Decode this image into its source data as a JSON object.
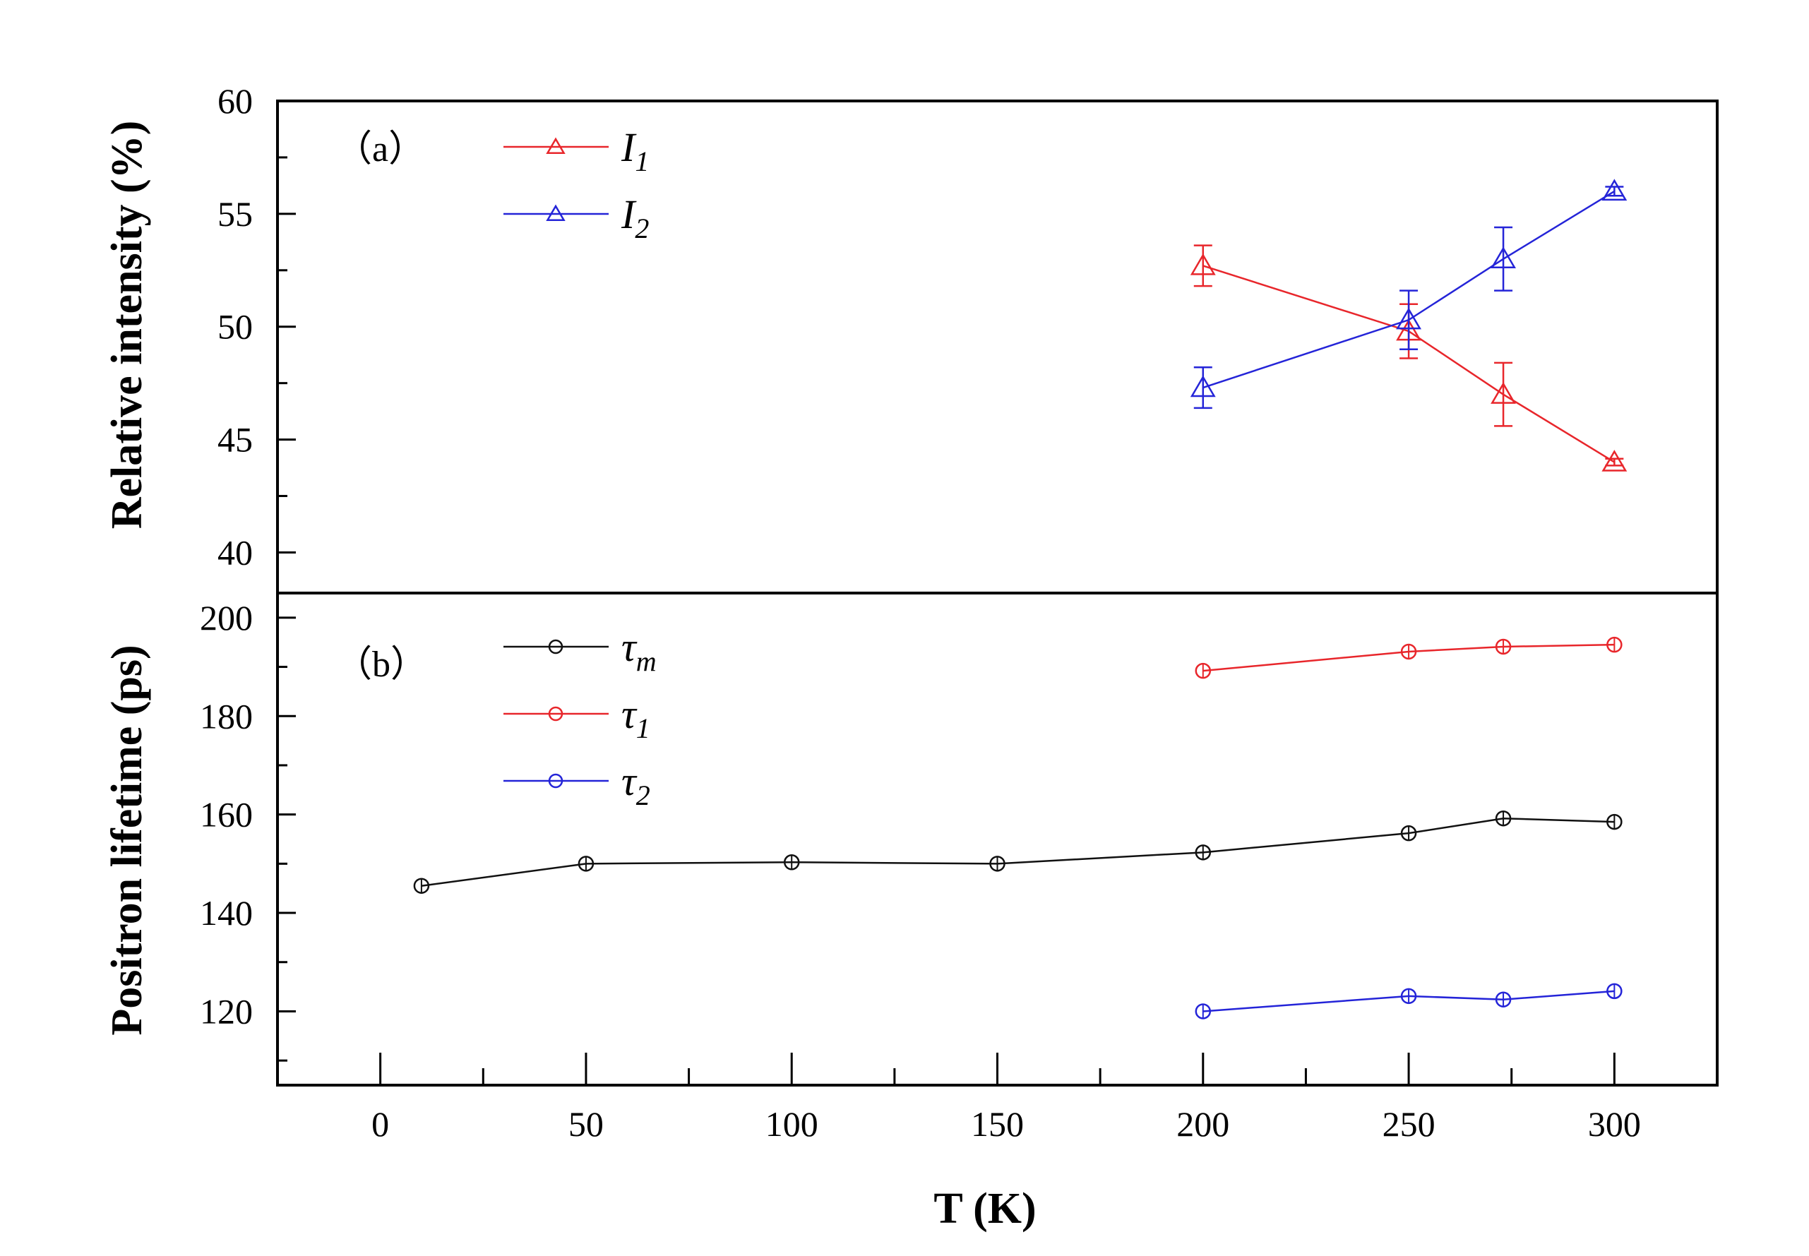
{
  "chart_data": [
    {
      "panel_label": "（a）",
      "type": "line",
      "ylabel": "Relative intensity (%)",
      "ylim": [
        38.2,
        60
      ],
      "yticks": [
        40,
        45,
        50,
        55,
        60
      ],
      "ytick_labels": [
        "40",
        "45",
        "50",
        "55",
        "60"
      ],
      "series": [
        {
          "name": "I",
          "sub": "1",
          "color": "#e8262b",
          "marker": "triangle",
          "x": [
            200,
            250,
            273,
            300
          ],
          "values": [
            52.7,
            49.8,
            47.0,
            44.0
          ],
          "errors": [
            0.9,
            1.2,
            1.4,
            0.15
          ]
        },
        {
          "name": "I",
          "sub": "2",
          "color": "#2424d8",
          "marker": "triangle",
          "x": [
            200,
            250,
            273,
            300
          ],
          "values": [
            47.3,
            50.3,
            53.0,
            56.0
          ],
          "errors": [
            0.9,
            1.3,
            1.4,
            0.2
          ]
        }
      ]
    },
    {
      "panel_label": "（b）",
      "type": "line",
      "xlabel": "T (K)",
      "ylabel": "Positron lifetime (ps)",
      "xlim": [
        -25,
        325
      ],
      "ylim": [
        105,
        205
      ],
      "xticks": [
        0,
        50,
        100,
        150,
        200,
        250,
        300
      ],
      "xtick_labels": [
        "0",
        "50",
        "100",
        "150",
        "200",
        "250",
        "300"
      ],
      "yticks": [
        120,
        140,
        160,
        180,
        200
      ],
      "ytick_labels": [
        "120",
        "140",
        "160",
        "180",
        "200"
      ],
      "series": [
        {
          "name": "τ",
          "sub": "m",
          "color": "#111111",
          "marker": "circle",
          "x": [
            10,
            50,
            100,
            150,
            200,
            250,
            273,
            300
          ],
          "values": [
            145.5,
            150.0,
            150.3,
            150.0,
            152.3,
            156.2,
            159.2,
            158.5
          ]
        },
        {
          "name": "τ",
          "sub": "1",
          "color": "#e8262b",
          "marker": "circle",
          "x": [
            200,
            250,
            273,
            300
          ],
          "values": [
            189.2,
            193.1,
            194.1,
            194.5
          ]
        },
        {
          "name": "τ",
          "sub": "2",
          "color": "#2424d8",
          "marker": "circle",
          "x": [
            200,
            250,
            273,
            300
          ],
          "values": [
            120.0,
            123.1,
            122.4,
            124.1
          ]
        }
      ]
    }
  ]
}
